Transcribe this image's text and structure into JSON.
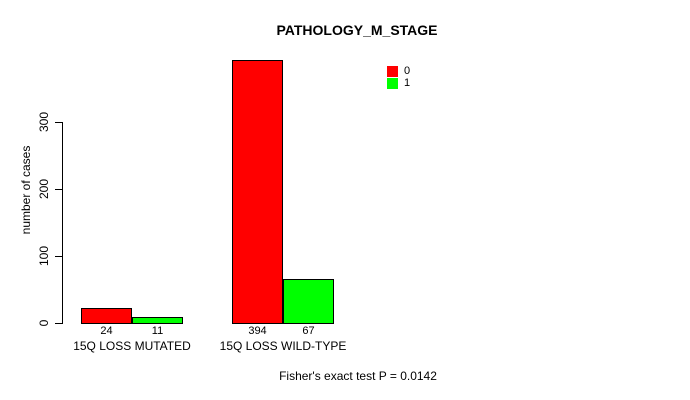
{
  "chart_data": {
    "type": "bar",
    "title": "PATHOLOGY_M_STAGE",
    "ylabel": "number of cases",
    "xlabel": "",
    "categories": [
      "15Q LOSS MUTATED",
      "15Q LOSS WILD-TYPE"
    ],
    "series": [
      {
        "name": "0",
        "color": "#FF0000",
        "values": [
          24,
          394
        ]
      },
      {
        "name": "1",
        "color": "#00FF00",
        "values": [
          11,
          67
        ]
      }
    ],
    "bar_value_labels": [
      [
        "24",
        "11"
      ],
      [
        "394",
        "67"
      ]
    ],
    "yticks": [
      0,
      100,
      200,
      300
    ],
    "ytick_labels": [
      "0",
      "100",
      "200",
      "300"
    ],
    "ylim": [
      0,
      420
    ],
    "grid": false,
    "legend_position": "top-right",
    "legend_entries": [
      "0",
      "1"
    ],
    "annotation": "Fisher's exact test P = 0.0142"
  },
  "colors": {
    "series_0": "#FF0000",
    "series_1": "#00FF00",
    "axis": "#000000",
    "background": "#FFFFFF"
  }
}
